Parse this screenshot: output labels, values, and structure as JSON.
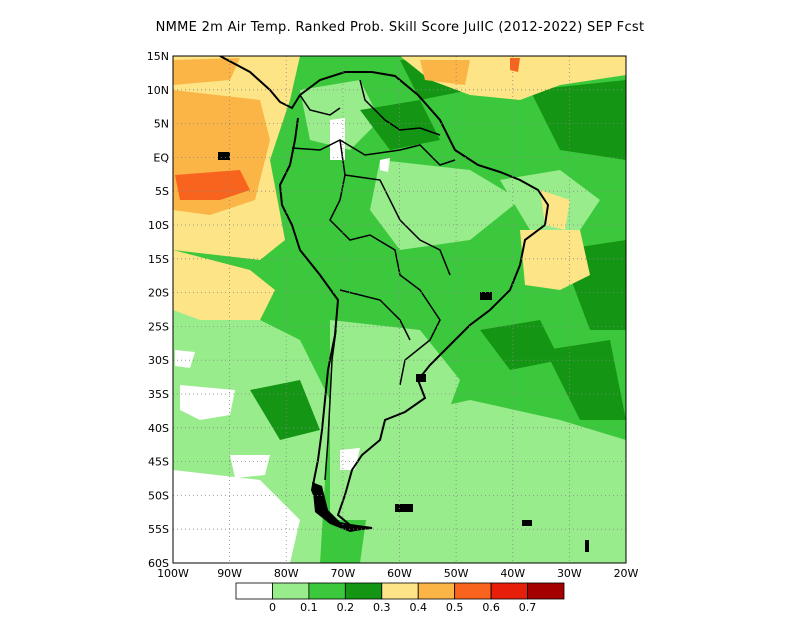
{
  "title": "NMME  2m Air Temp. Ranked Prob. Skill Score JulIC (2012-2022) SEP Fcst",
  "map": {
    "lat_labels": [
      "15N",
      "10N",
      "5N",
      "EQ",
      "5S",
      "10S",
      "15S",
      "20S",
      "25S",
      "30S",
      "35S",
      "40S",
      "45S",
      "50S",
      "55S",
      "60S"
    ],
    "lon_labels": [
      "100W",
      "90W",
      "80W",
      "70W",
      "60W",
      "50W",
      "40W",
      "30W",
      "20W"
    ],
    "lat_range": [
      -60,
      15
    ],
    "lon_range": [
      -100,
      -20
    ],
    "gridlines": "dotted"
  },
  "legend": {
    "labels": [
      "0",
      "0.1",
      "0.2",
      "0.3",
      "0.4",
      "0.5",
      "0.6",
      "0.7"
    ],
    "colors": [
      "#ffffff",
      "#98ec8c",
      "#3cc83c",
      "#149614",
      "#fde486",
      "#fbb446",
      "#f8641e",
      "#e61e0a",
      "#a50000"
    ]
  }
}
